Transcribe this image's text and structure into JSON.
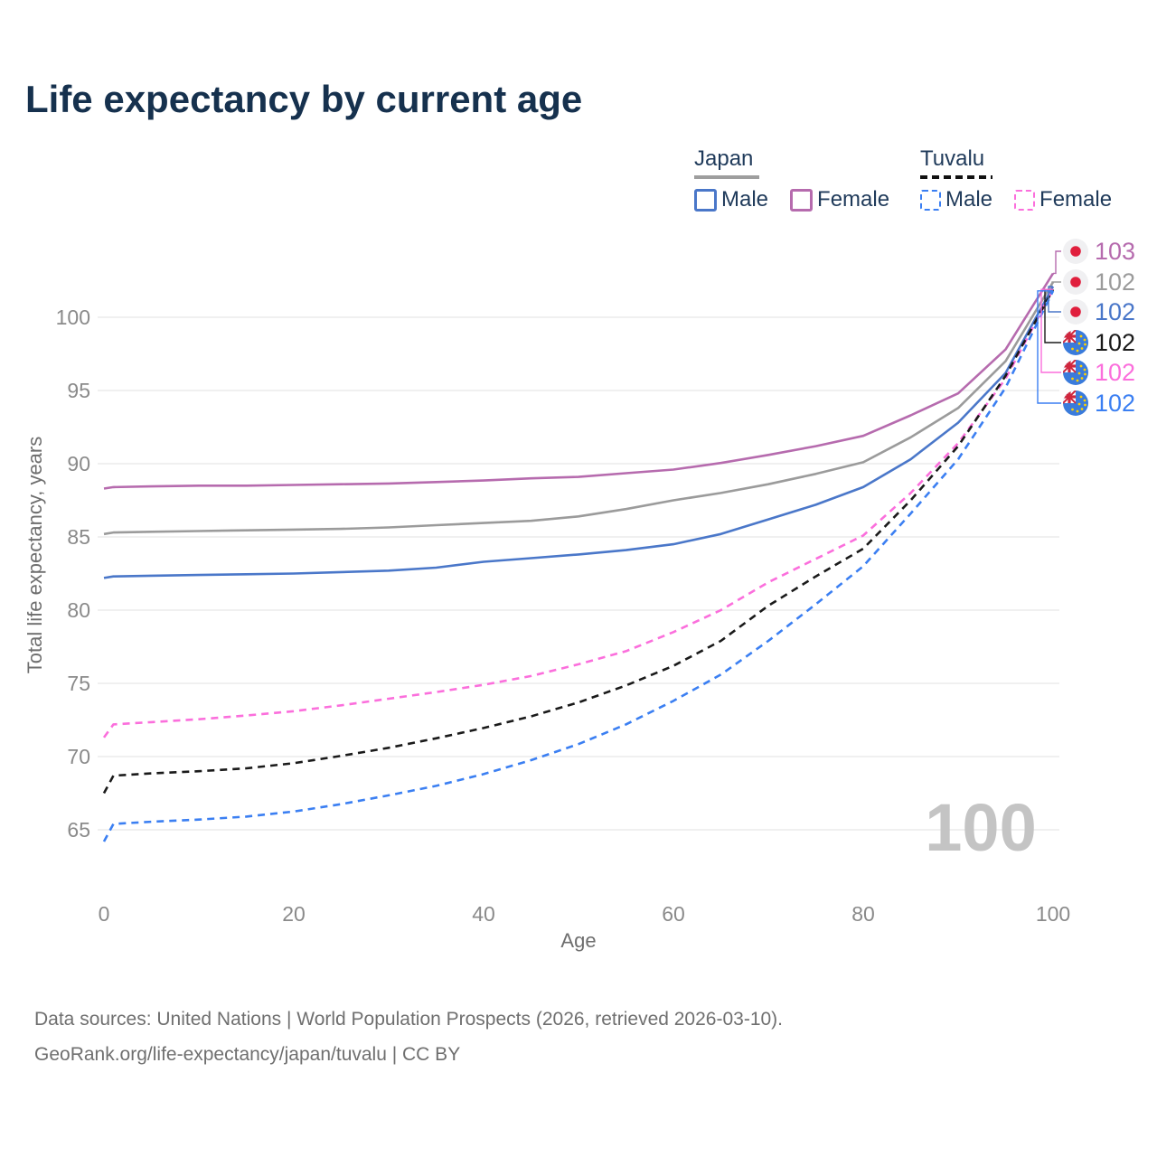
{
  "title": "Life expectancy by current age",
  "legend": {
    "groups": [
      {
        "label": "Japan",
        "style": "solid",
        "items": [
          {
            "label": "Male"
          },
          {
            "label": "Female"
          }
        ]
      },
      {
        "label": "Tuvalu",
        "style": "dashed",
        "items": [
          {
            "label": "Male"
          },
          {
            "label": "Female"
          }
        ]
      }
    ]
  },
  "watermark": "100",
  "colors": {
    "japan_male": "#4a77c9",
    "japan_female": "#b66bae",
    "japan_both": "#9b9b9b",
    "tuvalu_male": "#3b7ff2",
    "tuvalu_female": "#fb6fdc",
    "tuvalu_both": "#1a1a1a",
    "grid": "#e7e7e7",
    "tick_text": "#8a8a8a",
    "axis_title": "#6e6e6e",
    "title_text": "#16314e",
    "watermark_text": "#c4c4c4",
    "footer_text": "#6f6f6f"
  },
  "end_labels": [
    {
      "value": "103",
      "color": "#b66bae",
      "flag": "japan",
      "series_key": "japan-female"
    },
    {
      "value": "102",
      "color": "#9b9b9b",
      "flag": "japan",
      "series_key": "japan-both"
    },
    {
      "value": "102",
      "color": "#4a77c9",
      "flag": "japan",
      "series_key": "japan-male"
    },
    {
      "value": "102",
      "color": "#1a1a1a",
      "flag": "tuvalu",
      "series_key": "tuvalu-both"
    },
    {
      "value": "102",
      "color": "#fb6fdc",
      "flag": "tuvalu",
      "series_key": "tuvalu-female"
    },
    {
      "value": "102",
      "color": "#3b7ff2",
      "flag": "tuvalu",
      "series_key": "tuvalu-male"
    }
  ],
  "footer": {
    "line1": "Data sources: United Nations | World Population Prospects (2026, retrieved 2026-03-10).",
    "line2": "GeoRank.org/life-expectancy/japan/tuvalu | CC BY"
  },
  "chart_data": {
    "type": "line",
    "title": "Life expectancy by current age",
    "xlabel": "Age",
    "ylabel": "Total life expectancy, years",
    "xlim": [
      0,
      100
    ],
    "ylim": [
      63,
      104
    ],
    "x_ticks": [
      0,
      20,
      40,
      60,
      80,
      100
    ],
    "y_ticks": [
      65,
      70,
      75,
      80,
      85,
      90,
      95,
      100
    ],
    "grid": "horizontal",
    "legend_position": "top-right",
    "ages": [
      0,
      1,
      5,
      10,
      15,
      20,
      25,
      30,
      35,
      40,
      45,
      50,
      55,
      60,
      65,
      70,
      75,
      80,
      85,
      90,
      95,
      100
    ],
    "series": [
      {
        "key": "japan-both",
        "name": "Japan (both sexes)",
        "country": "Japan",
        "sex": "both",
        "color": "#9b9b9b",
        "dash": "solid",
        "values": [
          85.2,
          85.3,
          85.35,
          85.4,
          85.45,
          85.5,
          85.55,
          85.65,
          85.8,
          85.95,
          86.1,
          86.4,
          86.9,
          87.5,
          88.0,
          88.6,
          89.3,
          90.1,
          91.8,
          93.8,
          97.0,
          102.4
        ],
        "end_label": "102"
      },
      {
        "key": "japan-male",
        "name": "Japan Male",
        "country": "Japan",
        "sex": "male",
        "color": "#4a77c9",
        "dash": "solid",
        "values": [
          82.2,
          82.3,
          82.35,
          82.4,
          82.45,
          82.5,
          82.6,
          82.7,
          82.9,
          83.3,
          83.55,
          83.8,
          84.1,
          84.5,
          85.2,
          86.2,
          87.2,
          88.4,
          90.3,
          92.8,
          96.2,
          102.1
        ],
        "end_label": "102"
      },
      {
        "key": "japan-female",
        "name": "Japan Female",
        "country": "Japan",
        "sex": "female",
        "color": "#b66bae",
        "dash": "solid",
        "values": [
          88.3,
          88.4,
          88.45,
          88.5,
          88.5,
          88.55,
          88.6,
          88.65,
          88.75,
          88.85,
          89.0,
          89.1,
          89.35,
          89.6,
          90.05,
          90.6,
          91.2,
          91.9,
          93.3,
          94.8,
          97.8,
          103.0
        ],
        "end_label": "103"
      },
      {
        "key": "tuvalu-female",
        "name": "Tuvalu Female",
        "country": "Tuvalu",
        "sex": "female",
        "color": "#fb6fdc",
        "dash": "dashed",
        "values": [
          71.3,
          72.2,
          72.35,
          72.55,
          72.8,
          73.1,
          73.5,
          73.95,
          74.4,
          74.9,
          75.5,
          76.3,
          77.2,
          78.5,
          80.0,
          81.9,
          83.5,
          85.1,
          88.0,
          91.4,
          95.8,
          101.9
        ],
        "end_label": "102"
      },
      {
        "key": "tuvalu-both",
        "name": "Tuvalu (both sexes)",
        "country": "Tuvalu",
        "sex": "both",
        "color": "#1a1a1a",
        "dash": "dashed",
        "values": [
          67.5,
          68.7,
          68.85,
          69.0,
          69.2,
          69.55,
          70.05,
          70.6,
          71.25,
          71.95,
          72.75,
          73.7,
          74.85,
          76.2,
          77.9,
          80.3,
          82.3,
          84.2,
          87.5,
          91.2,
          96.0,
          101.9
        ],
        "end_label": "102"
      },
      {
        "key": "tuvalu-male",
        "name": "Tuvalu Male",
        "country": "Tuvalu",
        "sex": "male",
        "color": "#3b7ff2",
        "dash": "dashed",
        "values": [
          64.2,
          65.4,
          65.55,
          65.7,
          65.9,
          66.25,
          66.75,
          67.35,
          68.0,
          68.8,
          69.75,
          70.85,
          72.2,
          73.8,
          75.6,
          77.9,
          80.4,
          83.0,
          86.6,
          90.3,
          95.2,
          101.8
        ],
        "end_label": "102"
      }
    ]
  }
}
